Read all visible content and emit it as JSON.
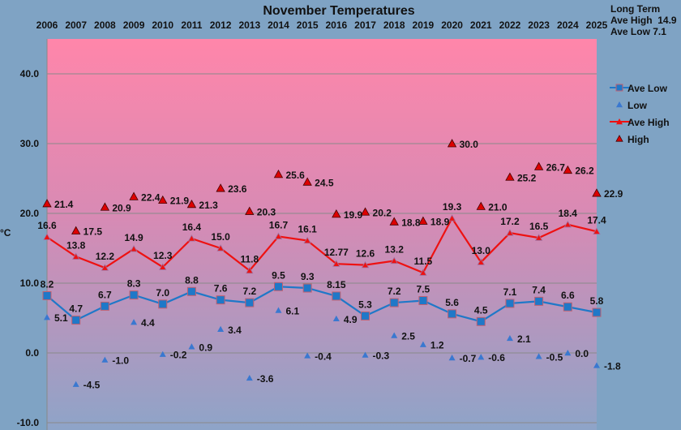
{
  "chart_data": {
    "type": "line",
    "title": "November Temperatures",
    "ylabel": "°C",
    "xlabel": "",
    "ylim": [
      -10,
      45
    ],
    "yticks": [
      -10,
      0,
      10,
      20,
      30,
      40
    ],
    "ytick_labels": [
      "-10.0",
      "0.0",
      "10.0",
      "20.0",
      "30.0",
      "40.0"
    ],
    "grid": true,
    "legend_position": "right",
    "categories": [
      "2006",
      "2007",
      "2008",
      "2009",
      "2010",
      "2011",
      "2012",
      "2013",
      "2014",
      "2015",
      "2016",
      "2017",
      "2018",
      "2019",
      "2020",
      "2021",
      "2022",
      "2023",
      "2024",
      "2025"
    ],
    "series": [
      {
        "name": "Ave Low",
        "color": "#1f78c8",
        "marker": "square",
        "line": true,
        "values": [
          8.2,
          4.7,
          6.7,
          8.3,
          7.0,
          8.8,
          7.6,
          7.2,
          9.5,
          9.3,
          8.15,
          5.3,
          7.2,
          7.5,
          5.6,
          4.5,
          7.1,
          7.4,
          6.6,
          5.8
        ],
        "labels": [
          "8.2",
          "4.7",
          "6.7",
          "8.3",
          "7.0",
          "8.8",
          "7.6",
          "7.2",
          "9.5",
          "9.3",
          "8.15",
          "5.3",
          "7.2",
          "7.5",
          "5.6",
          "4.5",
          "7.1",
          "7.4",
          "6.6",
          "5.8"
        ]
      },
      {
        "name": "Low",
        "color": "#3a78d0",
        "marker": "triangle",
        "line": false,
        "values": [
          5.1,
          -4.5,
          -1.0,
          4.4,
          -0.2,
          0.9,
          3.4,
          -3.6,
          6.1,
          -0.4,
          4.9,
          -0.3,
          2.5,
          1.2,
          -0.7,
          -0.6,
          2.1,
          -0.5,
          0.0,
          -1.8
        ],
        "labels": [
          "5.1",
          "-4.5",
          "-1.0",
          "4.4",
          "-0.2",
          "0.9",
          "3.4",
          "-3.6",
          "6.1",
          "-0.4",
          "4.9",
          "-0.3",
          "2.5",
          "1.2",
          "-0.7",
          "-0.6",
          "2.1",
          "-0.5",
          "0.0",
          "-1.8"
        ]
      },
      {
        "name": "Ave High",
        "color": "#ee1111",
        "marker": "triangle",
        "line": true,
        "values": [
          16.6,
          13.8,
          12.2,
          14.9,
          12.3,
          16.4,
          15.0,
          11.8,
          16.7,
          16.1,
          12.77,
          12.6,
          13.2,
          11.5,
          19.3,
          13.0,
          17.2,
          16.5,
          18.4,
          17.4
        ],
        "labels": [
          "16.6",
          "13.8",
          "12.2",
          "14.9",
          "12.3",
          "16.4",
          "15.0",
          "11.8",
          "16.7",
          "16.1",
          "12.77",
          "12.6",
          "13.2",
          "11.5",
          "19.3",
          "13.0",
          "17.2",
          "16.5",
          "18.4",
          "17.4"
        ]
      },
      {
        "name": "High",
        "color": "#dd0000",
        "marker": "triangle",
        "line": false,
        "values": [
          21.4,
          17.5,
          20.9,
          22.4,
          21.9,
          21.3,
          23.6,
          20.3,
          25.6,
          24.5,
          19.9,
          20.2,
          18.8,
          18.9,
          30.0,
          21.0,
          25.2,
          26.7,
          26.2,
          22.9
        ],
        "labels": [
          "21.4",
          "17.5",
          "20.9",
          "22.4",
          "21.9",
          "21.3",
          "23.6",
          "20.3",
          "25.6",
          "24.5",
          "19.9",
          "20.2",
          "18.8",
          "18.9",
          "30.0",
          "21.0",
          "25.2",
          "26.7",
          "26.2",
          "22.9"
        ]
      }
    ]
  },
  "info": {
    "heading": "Long Term",
    "ave_high_label": "Ave High",
    "ave_high_value": "14.9",
    "ave_low_label": "Ave Low",
    "ave_low_value": "7.1"
  }
}
